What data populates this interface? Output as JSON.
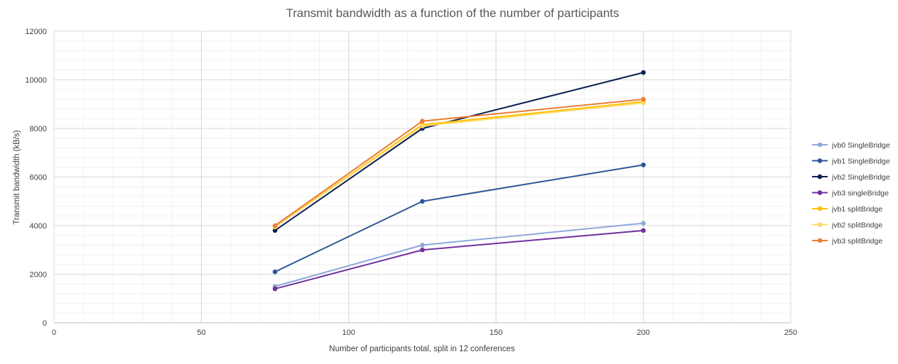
{
  "chart_data": {
    "type": "line",
    "title": "Transmit bandwidth as a function of the number of participants",
    "xlabel": "Number of participants total, split in 12 conferences",
    "ylabel": "Transmit bandwidth (kB/s)",
    "xlim": [
      0,
      250
    ],
    "ylim": [
      0,
      12000
    ],
    "x_ticks": [
      "0",
      "50",
      "100",
      "150",
      "200",
      "250"
    ],
    "y_ticks": [
      "0",
      "2000",
      "4000",
      "6000",
      "8000",
      "10000",
      "12000"
    ],
    "grid": true,
    "legend_position": "right",
    "x": [
      75,
      125,
      200
    ],
    "series": [
      {
        "name": "jvb0 SingleBridge",
        "color": "#8EA9DB",
        "values": [
          1500,
          3200,
          4100
        ]
      },
      {
        "name": "jvb1 SingleBridge",
        "color": "#2F5597",
        "values": [
          2100,
          5000,
          6500
        ]
      },
      {
        "name": "jvb2 SingleBridge",
        "color": "#0B1F51",
        "values": [
          3800,
          8000,
          10300
        ]
      },
      {
        "name": "jvb3 singleBridge",
        "color": "#7030A0",
        "values": [
          1400,
          3000,
          3800
        ]
      },
      {
        "name": "jvb1 splitBridge",
        "color": "#FFC000",
        "values": [
          3950,
          8150,
          9100
        ]
      },
      {
        "name": "jvb2 splitBridge",
        "color": "#FFD966",
        "values": [
          3950,
          8100,
          9050
        ]
      },
      {
        "name": "jvb3 splitBridge",
        "color": "#ED7D31",
        "values": [
          4000,
          8300,
          9200
        ]
      }
    ]
  }
}
